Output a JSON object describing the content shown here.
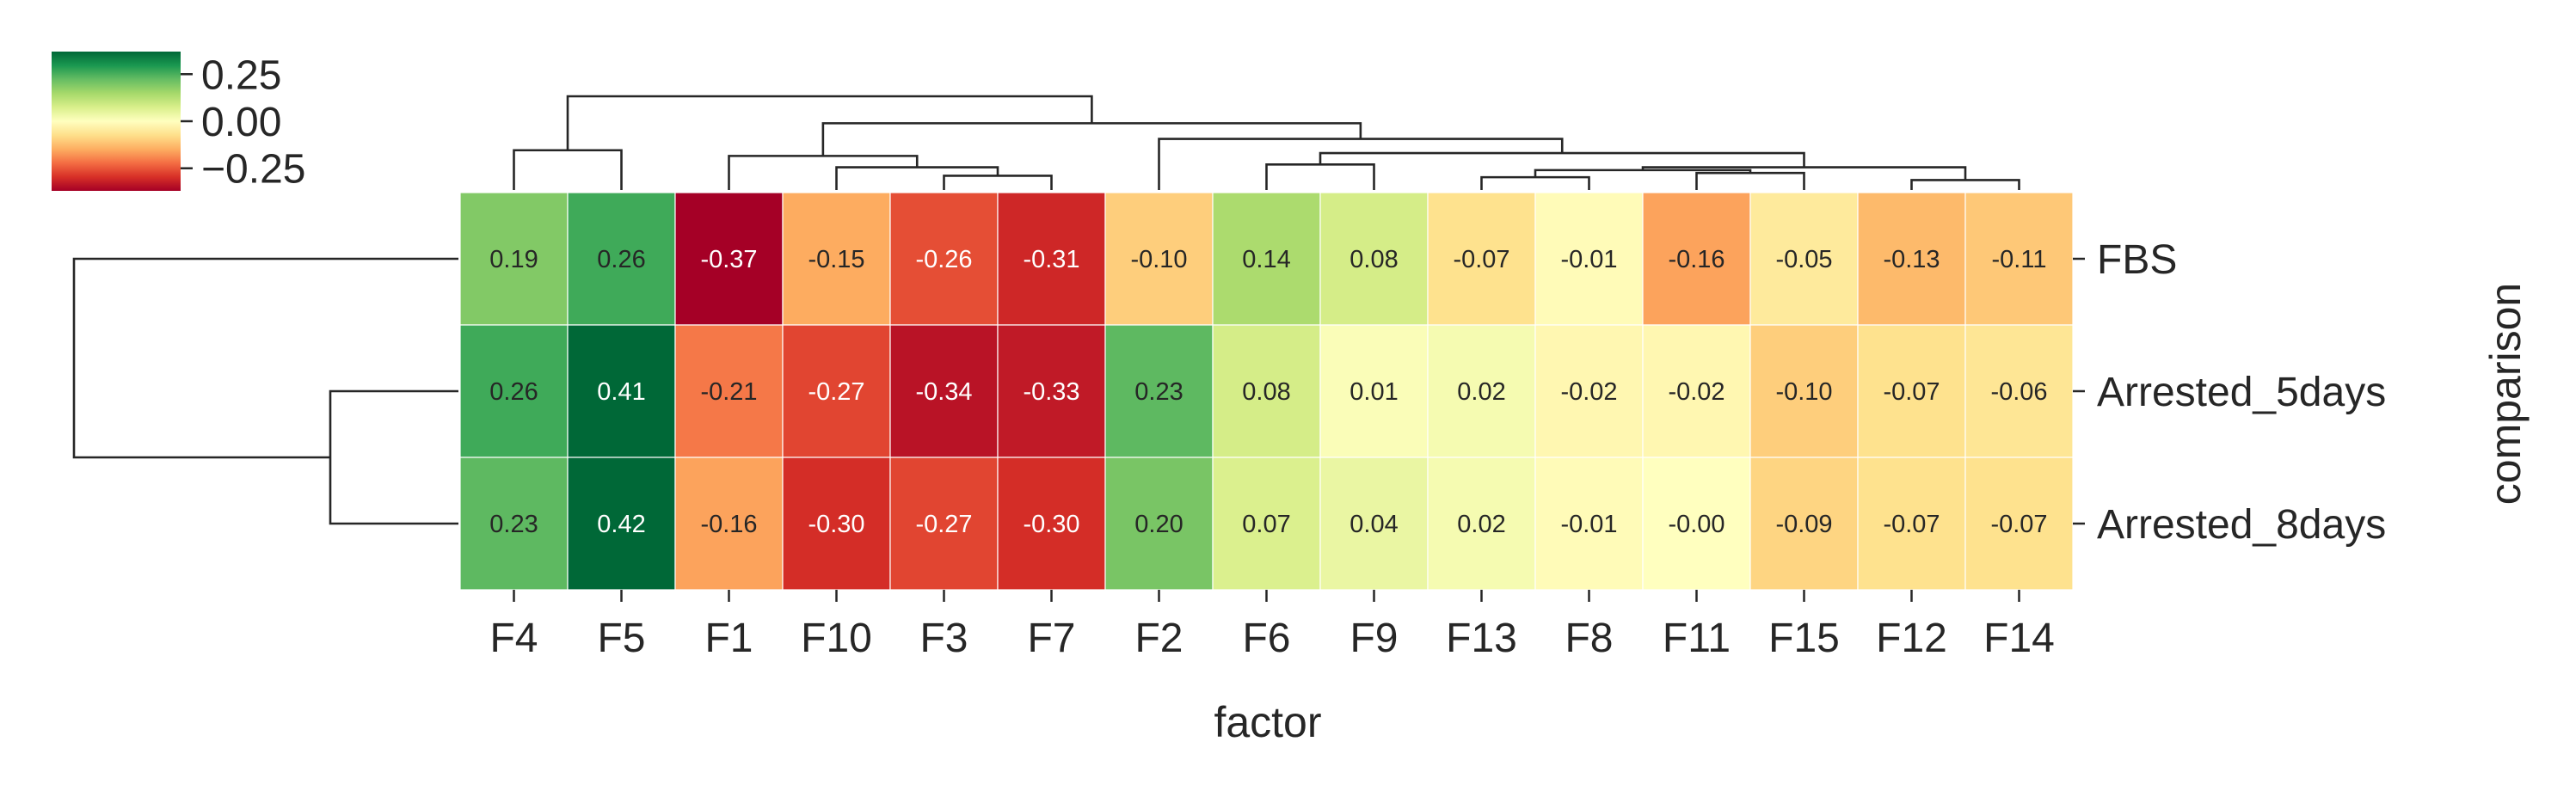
{
  "chart_data": {
    "type": "heatmap",
    "title": "",
    "xlabel": "factor",
    "ylabel": "comparison",
    "columns": [
      "F4",
      "F5",
      "F1",
      "F10",
      "F3",
      "F7",
      "F2",
      "F6",
      "F9",
      "F13",
      "F8",
      "F11",
      "F15",
      "F12",
      "F14"
    ],
    "rows": [
      "FBS",
      "Arrested_5days",
      "Arrested_8days"
    ],
    "values": [
      [
        0.19,
        0.26,
        -0.37,
        -0.15,
        -0.26,
        -0.31,
        -0.1,
        0.14,
        0.08,
        -0.07,
        -0.01,
        -0.16,
        -0.05,
        -0.13,
        -0.11
      ],
      [
        0.26,
        0.41,
        -0.21,
        -0.27,
        -0.34,
        -0.33,
        0.23,
        0.08,
        0.01,
        0.02,
        -0.02,
        -0.02,
        -0.1,
        -0.07,
        -0.06
      ],
      [
        0.23,
        0.42,
        -0.16,
        -0.3,
        -0.27,
        -0.3,
        0.2,
        0.07,
        0.04,
        0.02,
        -0.01,
        -0.0,
        -0.09,
        -0.07,
        -0.07
      ]
    ],
    "labels": [
      [
        "0.19",
        "0.26",
        "-0.37",
        "-0.15",
        "-0.26",
        "-0.31",
        "-0.10",
        "0.14",
        "0.08",
        "-0.07",
        "-0.01",
        "-0.16",
        "-0.05",
        "-0.13",
        "-0.11"
      ],
      [
        "0.26",
        "0.41",
        "-0.21",
        "-0.27",
        "-0.34",
        "-0.33",
        "0.23",
        "0.08",
        "0.01",
        "0.02",
        "-0.02",
        "-0.02",
        "-0.10",
        "-0.07",
        "-0.06"
      ],
      [
        "0.23",
        "0.42",
        "-0.16",
        "-0.30",
        "-0.27",
        "-0.30",
        "0.20",
        "0.07",
        "0.04",
        "0.02",
        "-0.01",
        "-0.00",
        "-0.09",
        "-0.07",
        "-0.07"
      ]
    ],
    "colormap": "RdYlGn",
    "color_range": [
      -0.37,
      0.37
    ],
    "colorbar": {
      "ticks": [
        0.25,
        0.0,
        -0.25
      ],
      "tick_labels": [
        "0.25",
        "0.00",
        "−0.25"
      ],
      "placement": "top-left"
    },
    "col_dendrogram": {
      "merges": [
        {
          "a": "F12",
          "b": "F14",
          "height": 0.07
        },
        {
          "a": "F13",
          "b": "F8",
          "height": 0.09
        },
        {
          "a": "F3",
          "b": "F7",
          "height": 0.1
        },
        {
          "a": "F11",
          "b": "F15",
          "height": 0.12
        },
        {
          "a": 1,
          "b": 3,
          "height": 0.14
        },
        {
          "a": 4,
          "b": 0,
          "height": 0.16
        },
        {
          "a": "F10",
          "b": 2,
          "height": 0.16
        },
        {
          "a": "F6",
          "b": "F9",
          "height": 0.18
        },
        {
          "a": "F1",
          "b": 6,
          "height": 0.24
        },
        {
          "a": 7,
          "b": 5,
          "height": 0.26
        },
        {
          "a": "F4",
          "b": "F5",
          "height": 0.28
        },
        {
          "a": "F2",
          "b": 9,
          "height": 0.36
        },
        {
          "a": 8,
          "b": 11,
          "height": 0.47
        },
        {
          "a": 10,
          "b": 12,
          "height": 0.66
        }
      ]
    },
    "row_dendrogram": {
      "merges": [
        {
          "a": "Arrested_5days",
          "b": "Arrested_8days",
          "height": 0.26
        },
        {
          "a": 0,
          "b": "FBS",
          "height": 0.78
        }
      ]
    },
    "grid": false
  }
}
